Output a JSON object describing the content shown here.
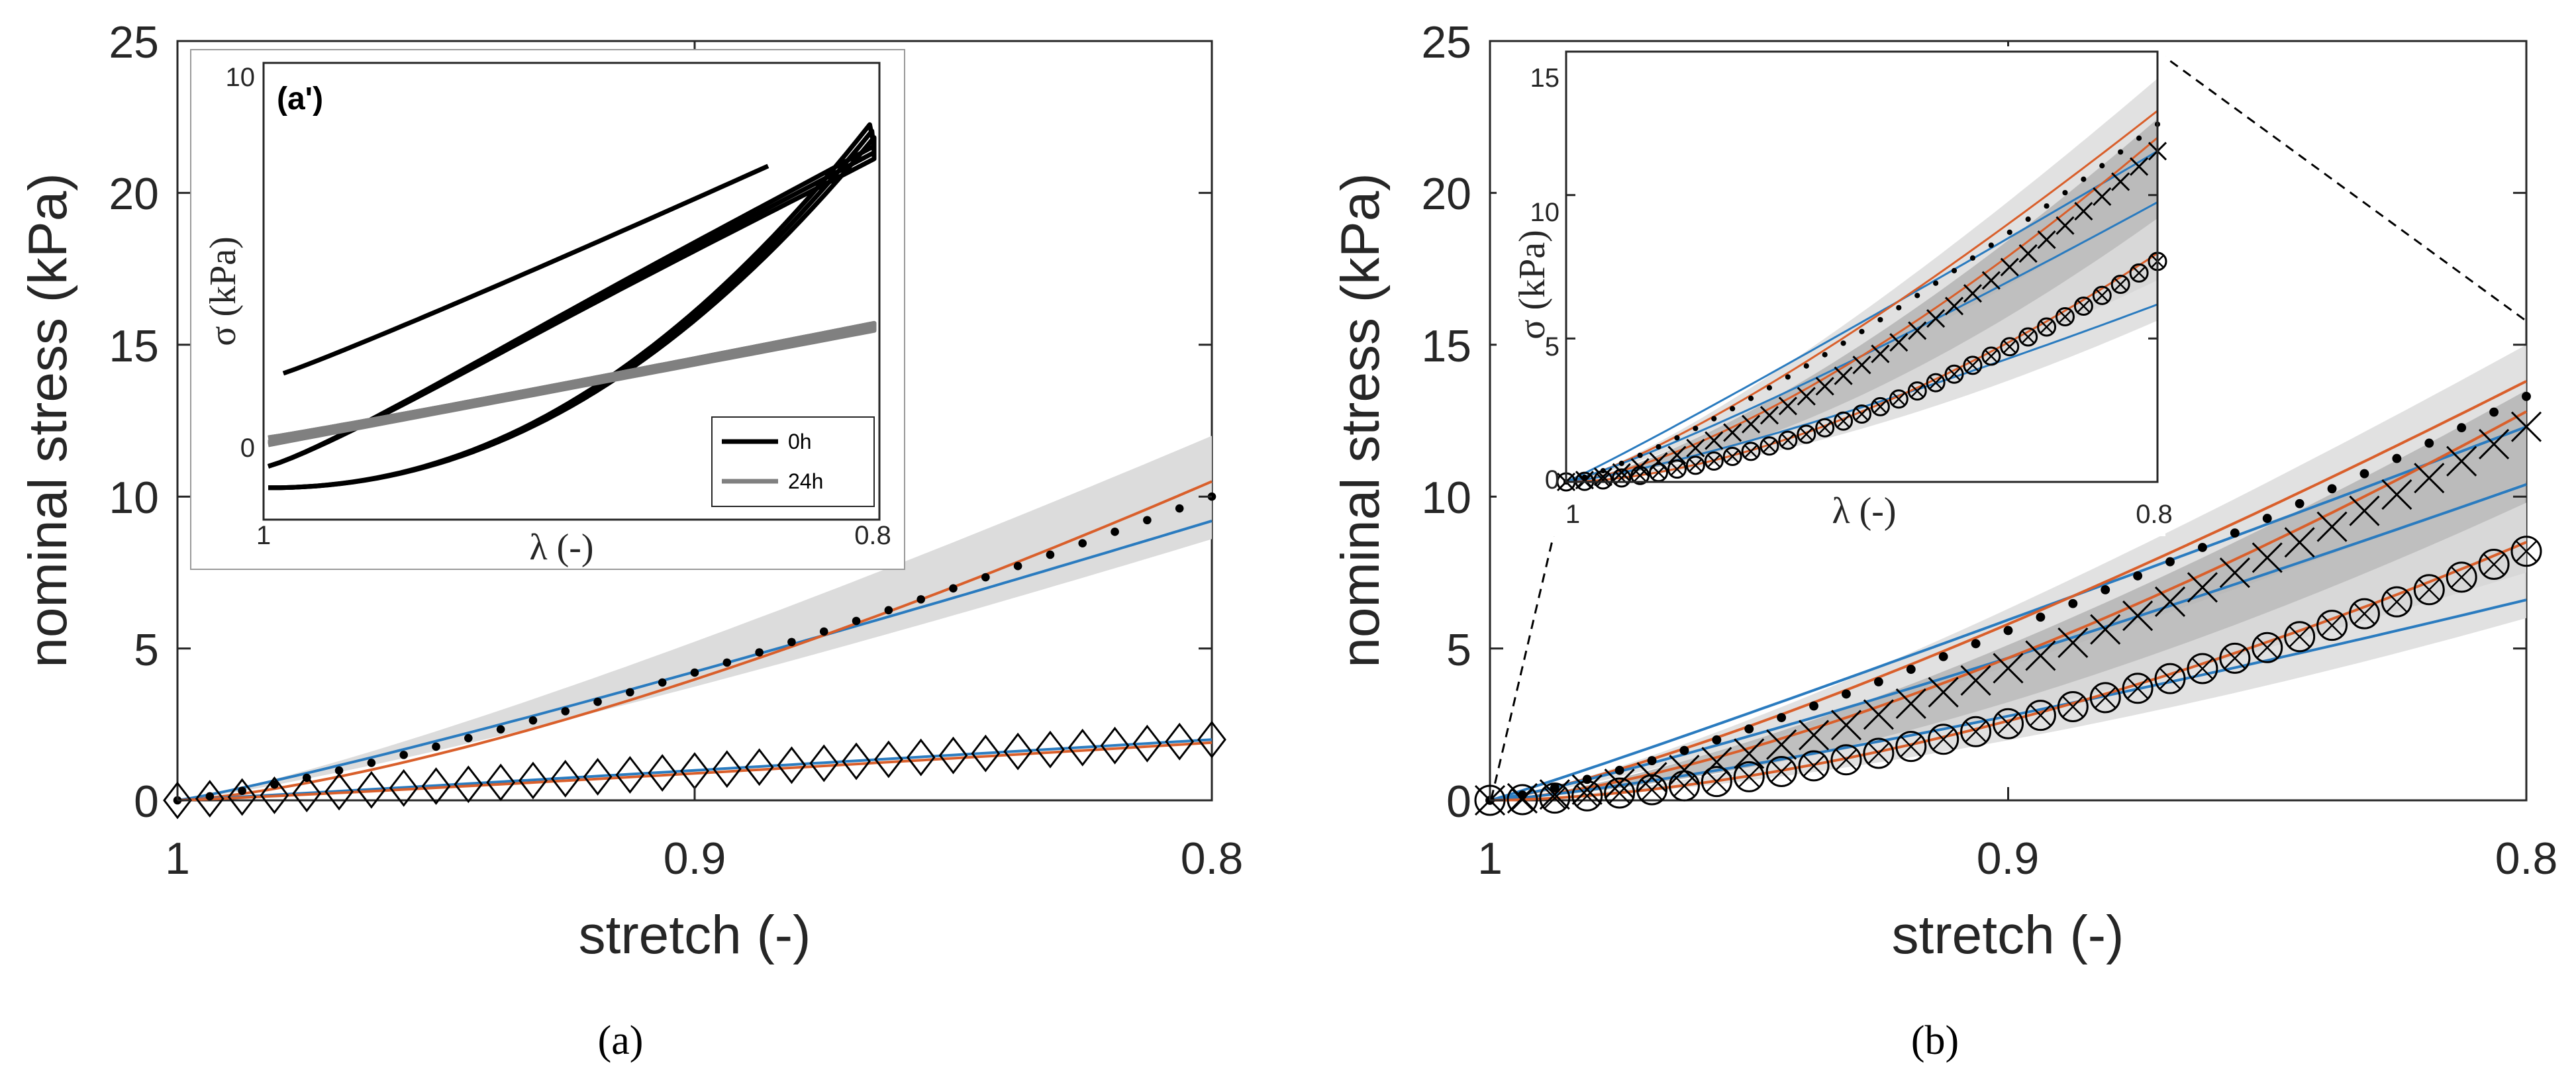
{
  "colors": {
    "blue": "#2a7bbf",
    "orange": "#d95f2b",
    "band_light": "#dcdcdc",
    "band_dark": "#b4b4b4",
    "black": "#000000",
    "gray": "#808080"
  },
  "chart_data": [
    {
      "id": "a",
      "type": "line",
      "caption": "(a)",
      "xlabel": "stretch (-)",
      "ylabel": "nominal stress (kPa)",
      "xlim": [
        1,
        0.8
      ],
      "ylim": [
        0,
        25
      ],
      "xticks": [
        "1",
        "0.9",
        "0.8"
      ],
      "yticks": [
        "0",
        "5",
        "10",
        "15",
        "20",
        "25"
      ],
      "series": [
        {
          "name": "0h data",
          "marker": "dot",
          "x_start": 1,
          "x_end": 0.8,
          "count": 33,
          "y_end": 10,
          "exponent": 1.25
        },
        {
          "name": "24h data",
          "marker": "diamond-x",
          "x_start": 1,
          "x_end": 0.8,
          "count": 33,
          "y_end": 2,
          "exponent": 1.05
        },
        {
          "name": "0h fit (blue)",
          "y_end": 9.2,
          "exponent": 1.12
        },
        {
          "name": "0h fit (orange)",
          "y_end": 10.5,
          "exponent": 1.4
        },
        {
          "name": "24h fit (blue)",
          "y_end": 2.0,
          "exponent": 1.02
        },
        {
          "name": "24h fit (orange)",
          "y_end": 1.9,
          "exponent": 1.1
        }
      ],
      "band": {
        "upper_end": 12.0,
        "lower_end": 8.6,
        "exponent": 1.2
      },
      "inset": {
        "tag": "(a')",
        "xlabel": "λ (-)",
        "ylabel": "σ (kPa)",
        "xticks": [
          "1",
          "0.8"
        ],
        "yticks": [
          "0",
          "10"
        ],
        "legend": [
          "0h",
          "24h"
        ],
        "loops": [
          {
            "name": "0h loop",
            "color": "black",
            "load_peak": 8.6,
            "unload_offset": 4.0,
            "start_y": 2.0
          },
          {
            "name": "24h loop",
            "color": "gray",
            "load_peak": 3.2,
            "unload_offset": 0.2,
            "start_y": 0.1
          }
        ]
      }
    },
    {
      "id": "b",
      "type": "line",
      "caption": "(b)",
      "xlabel": "stretch (-)",
      "ylabel": "nominal stress (kPa)",
      "xlim": [
        1,
        0.8
      ],
      "ylim": [
        0,
        25
      ],
      "xticks": [
        "1",
        "0.9",
        "0.8"
      ],
      "yticks": [
        "0",
        "5",
        "10",
        "15",
        "20",
        "25"
      ],
      "series": [
        {
          "name": "dots",
          "marker": "dot",
          "count": 33,
          "y_end": 13.3,
          "exponent": 1.25
        },
        {
          "name": "crosses",
          "marker": "x",
          "count": 33,
          "y_end": 12.3,
          "exponent": 1.5
        },
        {
          "name": "circled-x",
          "marker": "circle-x",
          "count": 33,
          "y_end": 8.2,
          "exponent": 1.7
        },
        {
          "name": "dots fit (blue)",
          "y_end": 12.3,
          "exponent": 1.05
        },
        {
          "name": "dots fit (orange)",
          "y_end": 13.8,
          "exponent": 1.25
        },
        {
          "name": "crosses fit (blue)",
          "y_end": 10.4,
          "exponent": 1.15
        },
        {
          "name": "crosses fit (orange)",
          "y_end": 12.8,
          "exponent": 1.45
        },
        {
          "name": "circled fit (blue)",
          "y_end": 6.6,
          "exponent": 1.25
        },
        {
          "name": "circled fit (orange)",
          "y_end": 8.5,
          "exponent": 1.7
        }
      ],
      "bands": [
        {
          "upper_end": 15.0,
          "lower_end": 10.5,
          "exponent": 1.25
        },
        {
          "upper_end": 13.5,
          "lower_end": 7.5,
          "exponent": 1.4
        },
        {
          "upper_end": 9.8,
          "lower_end": 6.0,
          "exponent": 1.6
        }
      ],
      "inset": {
        "xlabel": "λ (-)",
        "ylabel": "σ (kPa)",
        "xticks": [
          "1",
          "0.8"
        ],
        "yticks": [
          "0",
          "5",
          "10",
          "15"
        ],
        "ylim": [
          0,
          16
        ]
      }
    }
  ]
}
